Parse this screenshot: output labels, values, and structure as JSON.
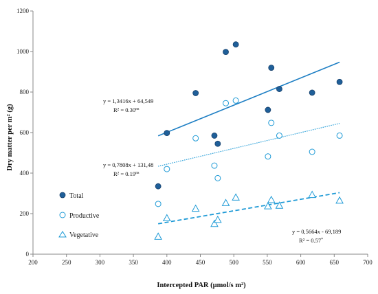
{
  "chart_data": {
    "type": "scatter",
    "xlabel": "Intercepted PAR (µmol/s m²)",
    "ylabel": "Dry matter per m² (g)",
    "xlim": [
      200,
      700
    ],
    "ylim": [
      0,
      1200
    ],
    "x_ticks": [
      200,
      250,
      300,
      350,
      400,
      450,
      500,
      550,
      600,
      650,
      700
    ],
    "y_ticks": [
      0,
      200,
      400,
      600,
      800,
      1000,
      1200
    ],
    "grid": false,
    "legend_position": "bottom-left",
    "series": [
      {
        "name": "Total",
        "marker": "filled-circle",
        "color": "#1f5f99",
        "x": [
          387,
          400,
          443,
          471,
          476,
          488,
          503,
          551,
          556,
          568,
          617,
          658
        ],
        "y": [
          335,
          598,
          795,
          585,
          545,
          998,
          1035,
          712,
          920,
          815,
          797,
          850
        ],
        "trendline": {
          "type": "solid",
          "x": [
            387,
            658
          ],
          "equation": "y = 1,3416x + 64,549",
          "r2": "R² = 0.30",
          "sig": "ns"
        }
      },
      {
        "name": "Productive",
        "marker": "open-circle",
        "color": "#1e9ad6",
        "x": [
          387,
          400,
          443,
          471,
          476,
          488,
          503,
          551,
          556,
          568,
          617,
          658
        ],
        "y": [
          248,
          420,
          572,
          437,
          375,
          745,
          758,
          482,
          648,
          585,
          505,
          585
        ],
        "trendline": {
          "type": "dotted",
          "x": [
            387,
            658
          ],
          "equation": "y = 0,7808x + 131,48",
          "r2": "R² = 0.19",
          "sig": "ns"
        }
      },
      {
        "name": "Vegetative",
        "marker": "open-triangle",
        "color": "#1e9ad6",
        "x": [
          387,
          400,
          443,
          471,
          476,
          488,
          503,
          551,
          556,
          568,
          617,
          658
        ],
        "y": [
          87,
          178,
          225,
          150,
          170,
          253,
          280,
          237,
          268,
          240,
          293,
          265
        ],
        "trendline": {
          "type": "dashed",
          "x": [
            387,
            658
          ],
          "equation": "y = 0,5664x - 69,189",
          "r2": "R² = 0.57",
          "sig": "*"
        }
      }
    ]
  }
}
